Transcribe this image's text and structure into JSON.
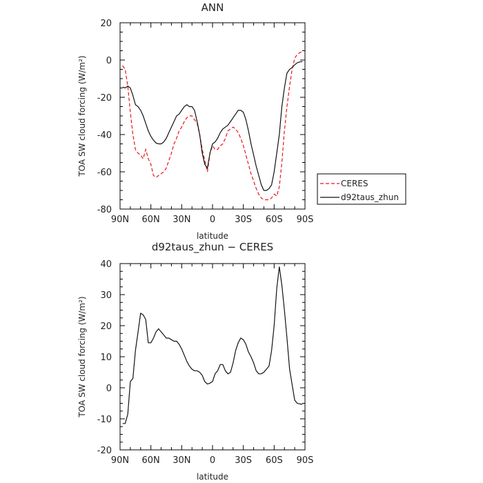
{
  "chart_data": [
    {
      "type": "line",
      "title": "ANN",
      "xlabel": "latitude",
      "ylabel": "TOA SW cloud forcing (W/m²)",
      "x_ticks": [
        "90N",
        "60N",
        "30N",
        "0",
        "30S",
        "60S",
        "90S"
      ],
      "xlim": [
        90,
        -90
      ],
      "ylim": [
        -80,
        20
      ],
      "y_ticks": [
        20,
        0,
        -20,
        -40,
        -60,
        -80
      ],
      "legend_position": "right",
      "series": [
        {
          "name": "CERES",
          "color": "#e8141a",
          "dash": "dashed",
          "points": [
            [
              87.5,
              -3
            ],
            [
              85,
              -5
            ],
            [
              82.5,
              -14
            ],
            [
              80,
              -28
            ],
            [
              77.5,
              -40
            ],
            [
              75,
              -48
            ],
            [
              72.5,
              -50
            ],
            [
              70,
              -51
            ],
            [
              67.5,
              -53
            ],
            [
              65,
              -48
            ],
            [
              62.5,
              -53
            ],
            [
              60,
              -56
            ],
            [
              57.5,
              -62
            ],
            [
              55,
              -63
            ],
            [
              52.5,
              -62
            ],
            [
              50,
              -61
            ],
            [
              47.5,
              -60
            ],
            [
              45,
              -58
            ],
            [
              42.5,
              -54
            ],
            [
              40,
              -50
            ],
            [
              37.5,
              -45
            ],
            [
              35,
              -42
            ],
            [
              32.5,
              -38
            ],
            [
              30,
              -36
            ],
            [
              27.5,
              -33
            ],
            [
              25,
              -31
            ],
            [
              22.5,
              -30
            ],
            [
              20,
              -30
            ],
            [
              17.5,
              -32
            ],
            [
              15,
              -34
            ],
            [
              12.5,
              -40
            ],
            [
              10,
              -48
            ],
            [
              7.5,
              -54
            ],
            [
              5,
              -60
            ],
            [
              2.5,
              -50
            ],
            [
              0,
              -46
            ],
            [
              -2.5,
              -48
            ],
            [
              -5,
              -48
            ],
            [
              -7.5,
              -46
            ],
            [
              -10,
              -45
            ],
            [
              -12.5,
              -42
            ],
            [
              -15,
              -38
            ],
            [
              -17.5,
              -37
            ],
            [
              -20,
              -36
            ],
            [
              -22.5,
              -37
            ],
            [
              -25,
              -39
            ],
            [
              -27.5,
              -42
            ],
            [
              -30,
              -46
            ],
            [
              -32.5,
              -51
            ],
            [
              -35,
              -56
            ],
            [
              -37.5,
              -61
            ],
            [
              -40,
              -65
            ],
            [
              -42.5,
              -69
            ],
            [
              -45,
              -72
            ],
            [
              -47.5,
              -74
            ],
            [
              -50,
              -75
            ],
            [
              -52.5,
              -75
            ],
            [
              -55,
              -75
            ],
            [
              -57.5,
              -74
            ],
            [
              -60,
              -72
            ],
            [
              -62.5,
              -73
            ],
            [
              -65,
              -68
            ],
            [
              -67.5,
              -55
            ],
            [
              -70,
              -38
            ],
            [
              -72.5,
              -25
            ],
            [
              -75,
              -14
            ],
            [
              -77.5,
              -5
            ],
            [
              -80,
              1
            ],
            [
              -82.5,
              3
            ],
            [
              -85,
              4
            ],
            [
              -87.5,
              4.5
            ]
          ]
        },
        {
          "name": "d92taus_zhun",
          "color": "#111111",
          "dash": "solid",
          "points": [
            [
              87.5,
              -14.5
            ],
            [
              85,
              -15
            ],
            [
              82.5,
              -14
            ],
            [
              80,
              -15
            ],
            [
              77.5,
              -19
            ],
            [
              75,
              -24
            ],
            [
              72.5,
              -25
            ],
            [
              70,
              -27
            ],
            [
              67.5,
              -30
            ],
            [
              65,
              -34
            ],
            [
              62.5,
              -38
            ],
            [
              60,
              -41
            ],
            [
              57.5,
              -43
            ],
            [
              55,
              -44.5
            ],
            [
              52.5,
              -45
            ],
            [
              50,
              -45
            ],
            [
              47.5,
              -44
            ],
            [
              45,
              -42
            ],
            [
              42.5,
              -39
            ],
            [
              40,
              -36
            ],
            [
              37.5,
              -33
            ],
            [
              35,
              -30
            ],
            [
              32.5,
              -29
            ],
            [
              30,
              -27
            ],
            [
              27.5,
              -25
            ],
            [
              25,
              -24
            ],
            [
              22.5,
              -25
            ],
            [
              20,
              -25
            ],
            [
              17.5,
              -27
            ],
            [
              15,
              -33
            ],
            [
              12.5,
              -40
            ],
            [
              10,
              -50
            ],
            [
              7.5,
              -56
            ],
            [
              5,
              -58
            ],
            [
              2.5,
              -50
            ],
            [
              0,
              -45
            ],
            [
              -2.5,
              -44
            ],
            [
              -5,
              -42
            ],
            [
              -7.5,
              -39
            ],
            [
              -10,
              -37
            ],
            [
              -12.5,
              -36
            ],
            [
              -15,
              -35
            ],
            [
              -17.5,
              -33
            ],
            [
              -20,
              -31
            ],
            [
              -22.5,
              -29
            ],
            [
              -25,
              -27
            ],
            [
              -27.5,
              -27
            ],
            [
              -30,
              -28
            ],
            [
              -32.5,
              -32
            ],
            [
              -35,
              -38
            ],
            [
              -37.5,
              -45
            ],
            [
              -40,
              -51
            ],
            [
              -42.5,
              -57
            ],
            [
              -45,
              -62
            ],
            [
              -47.5,
              -67
            ],
            [
              -50,
              -70
            ],
            [
              -52.5,
              -70
            ],
            [
              -55,
              -69
            ],
            [
              -57.5,
              -67
            ],
            [
              -60,
              -60
            ],
            [
              -62.5,
              -50
            ],
            [
              -65,
              -40
            ],
            [
              -67.5,
              -25
            ],
            [
              -70,
              -15
            ],
            [
              -72.5,
              -7
            ],
            [
              -75,
              -5
            ],
            [
              -77.5,
              -4
            ],
            [
              -80,
              -2.5
            ],
            [
              -82.5,
              -1.5
            ],
            [
              -85,
              -1
            ],
            [
              -87.5,
              -0.8
            ]
          ]
        }
      ]
    },
    {
      "type": "line",
      "title": "d92taus_zhun − CERES",
      "xlabel": "latitude",
      "ylabel": "TOA SW cloud forcing (W/m²)",
      "x_ticks": [
        "90N",
        "60N",
        "30N",
        "0",
        "30S",
        "60S",
        "90S"
      ],
      "xlim": [
        90,
        -90
      ],
      "ylim": [
        -20,
        40
      ],
      "y_ticks": [
        40,
        30,
        20,
        10,
        0,
        -10,
        -20
      ],
      "series": [
        {
          "color": "#111111",
          "dash": "solid",
          "points": [
            [
              87.5,
              -11.5
            ],
            [
              85,
              -11.5
            ],
            [
              82.5,
              -8.5
            ],
            [
              80,
              2
            ],
            [
              77.5,
              3
            ],
            [
              75,
              12
            ],
            [
              72.5,
              18
            ],
            [
              70,
              24
            ],
            [
              67.5,
              23.5
            ],
            [
              65,
              22
            ],
            [
              62.5,
              14.5
            ],
            [
              60,
              14.5
            ],
            [
              57.5,
              16
            ],
            [
              55,
              18
            ],
            [
              52.5,
              19
            ],
            [
              50,
              18
            ],
            [
              47.5,
              17
            ],
            [
              45,
              16
            ],
            [
              42.5,
              16
            ],
            [
              40,
              15.5
            ],
            [
              37.5,
              15
            ],
            [
              35,
              15
            ],
            [
              32.5,
              14
            ],
            [
              30,
              12.5
            ],
            [
              27.5,
              10.5
            ],
            [
              25,
              8.5
            ],
            [
              22.5,
              7
            ],
            [
              20,
              6
            ],
            [
              17.5,
              5.5
            ],
            [
              15,
              5.5
            ],
            [
              12.5,
              5
            ],
            [
              10,
              4
            ],
            [
              7.5,
              2
            ],
            [
              5,
              1.2
            ],
            [
              2.5,
              1.5
            ],
            [
              0,
              2
            ],
            [
              -2.5,
              4.5
            ],
            [
              -5,
              5.5
            ],
            [
              -7.5,
              7.5
            ],
            [
              -10,
              7.5
            ],
            [
              -12.5,
              5.5
            ],
            [
              -15,
              4.5
            ],
            [
              -17.5,
              5
            ],
            [
              -20,
              8
            ],
            [
              -22.5,
              12
            ],
            [
              -25,
              14.5
            ],
            [
              -27.5,
              16
            ],
            [
              -30,
              15.5
            ],
            [
              -32.5,
              14
            ],
            [
              -35,
              11.5
            ],
            [
              -37.5,
              10
            ],
            [
              -40,
              8
            ],
            [
              -42.5,
              5.5
            ],
            [
              -45,
              4.5
            ],
            [
              -47.5,
              4.5
            ],
            [
              -50,
              5
            ],
            [
              -52.5,
              6
            ],
            [
              -55,
              7
            ],
            [
              -57.5,
              12
            ],
            [
              -60,
              20
            ],
            [
              -62.5,
              32
            ],
            [
              -65,
              39
            ],
            [
              -67.5,
              33
            ],
            [
              -70,
              25
            ],
            [
              -72.5,
              16
            ],
            [
              -75,
              6
            ],
            [
              -77.5,
              1
            ],
            [
              -80,
              -4
            ],
            [
              -82.5,
              -5
            ],
            [
              -85,
              -5.2
            ],
            [
              -87.5,
              -5.3
            ]
          ]
        }
      ]
    }
  ]
}
